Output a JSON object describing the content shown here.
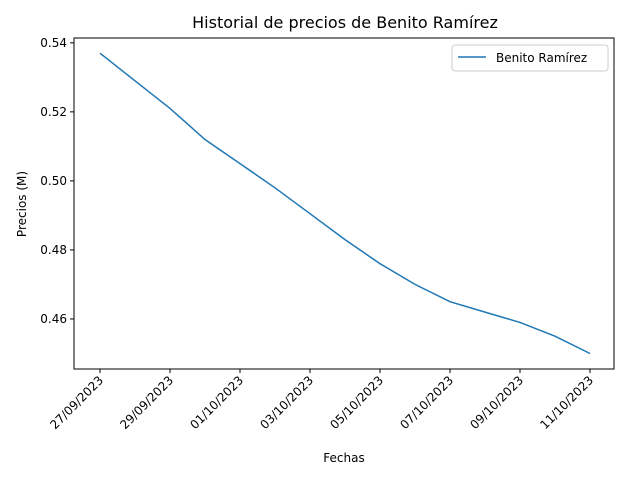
{
  "chart_data": {
    "type": "line",
    "title": "Historial de precios de Benito Ramírez",
    "xlabel": "Fechas",
    "ylabel": "Precios (M)",
    "x": [
      "27/09/2023",
      "28/09/2023",
      "29/09/2023",
      "30/09/2023",
      "01/10/2023",
      "02/10/2023",
      "03/10/2023",
      "04/10/2023",
      "05/10/2023",
      "06/10/2023",
      "07/10/2023",
      "08/10/2023",
      "09/10/2023",
      "10/10/2023",
      "11/10/2023"
    ],
    "xticks": [
      "27/09/2023",
      "29/09/2023",
      "01/10/2023",
      "03/10/2023",
      "05/10/2023",
      "07/10/2023",
      "09/10/2023",
      "11/10/2023"
    ],
    "yticks": [
      "0.46",
      "0.48",
      "0.50",
      "0.52",
      "0.54"
    ],
    "ylim": [
      0.4455,
      0.5414
    ],
    "series": [
      {
        "name": "Benito Ramírez",
        "color": "#1f77b4",
        "values": [
          0.537,
          0.529,
          0.521,
          0.512,
          0.505,
          0.498,
          0.4905,
          0.483,
          0.476,
          0.47,
          0.465,
          0.462,
          0.459,
          0.455,
          0.45
        ]
      }
    ],
    "legend_position": "top-right",
    "grid": false
  }
}
